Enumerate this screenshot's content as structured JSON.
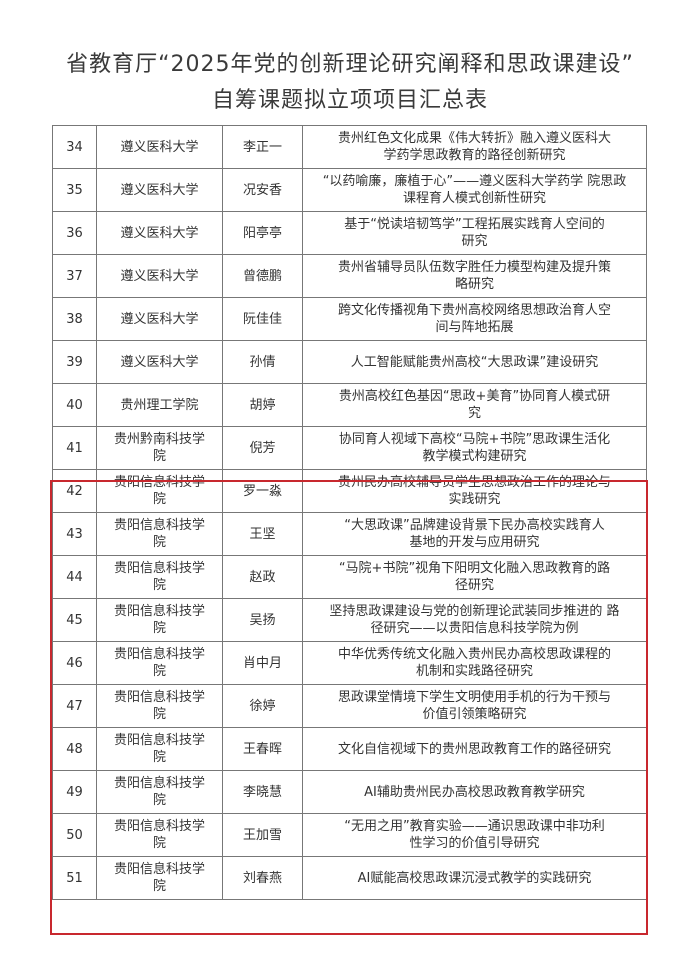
{
  "title": {
    "line1": "省教育厅“2025年党的创新理论研究阐释和思政课建设”",
    "line2": "自筹课题拟立项项目汇总表"
  },
  "highlight_color": "#c8282e",
  "rows": [
    {
      "no": "34",
      "unit": "遵义医科大学",
      "name": "李正一",
      "topic": "贵州红色文化成果《伟大转折》融入遵义医科大\n学药学思政教育的路径创新研究"
    },
    {
      "no": "35",
      "unit": "遵义医科大学",
      "name": "况安香",
      "topic": "“以药喻廉，廉植于心”——遵义医科大学药学 院思政\n课程育人模式创新性研究"
    },
    {
      "no": "36",
      "unit": "遵义医科大学",
      "name": "阳亭亭",
      "topic": "基于“悦读培韧笃学”工程拓展实践育人空间的\n研究"
    },
    {
      "no": "37",
      "unit": "遵义医科大学",
      "name": "曾德鹏",
      "topic": "贵州省辅导员队伍数字胜任力模型构建及提升策\n略研究"
    },
    {
      "no": "38",
      "unit": "遵义医科大学",
      "name": "阮佳佳",
      "topic": "跨文化传播视角下贵州高校网络思想政治育人空\n间与阵地拓展"
    },
    {
      "no": "39",
      "unit": "遵义医科大学",
      "name": "孙倩",
      "topic": "人工智能赋能贵州高校“大思政课”建设研究"
    },
    {
      "no": "40",
      "unit": "贵州理工学院",
      "name": "胡婷",
      "topic": "贵州高校红色基因“思政+美育”协同育人模式研\n究"
    },
    {
      "no": "41",
      "unit": "贵州黔南科技学\n院",
      "name": "倪芳",
      "topic": "协同育人视域下高校“马院+书院”思政课生活化\n教学模式构建研究"
    },
    {
      "no": "42",
      "unit": "贵阳信息科技学\n院",
      "name": "罗一淼",
      "topic": "贵州民办高校辅导员学生思想政治工作的理论与\n实践研究"
    },
    {
      "no": "43",
      "unit": "贵阳信息科技学\n院",
      "name": "王坚",
      "topic": "“大思政课”品牌建设背景下民办高校实践育人\n基地的开发与应用研究"
    },
    {
      "no": "44",
      "unit": "贵阳信息科技学\n院",
      "name": "赵政",
      "topic": "“马院+书院”视角下阳明文化融入思政教育的路\n径研究"
    },
    {
      "no": "45",
      "unit": "贵阳信息科技学\n院",
      "name": "吴扬",
      "topic": "坚持思政课建设与党的创新理论武装同步推进的 路\n径研究——以贵阳信息科技学院为例"
    },
    {
      "no": "46",
      "unit": "贵阳信息科技学\n院",
      "name": "肖中月",
      "topic": "中华优秀传统文化融入贵州民办高校思政课程的\n机制和实践路径研究"
    },
    {
      "no": "47",
      "unit": "贵阳信息科技学\n院",
      "name": "徐婷",
      "topic": "思政课堂情境下学生文明使用手机的行为干预与\n价值引领策略研究"
    },
    {
      "no": "48",
      "unit": "贵阳信息科技学\n院",
      "name": "王春晖",
      "topic": "文化自信视域下的贵州思政教育工作的路径研究"
    },
    {
      "no": "49",
      "unit": "贵阳信息科技学\n院",
      "name": "李晓慧",
      "topic": "AI辅助贵州民办高校思政教育教学研究"
    },
    {
      "no": "50",
      "unit": "贵阳信息科技学\n院",
      "name": "王加雪",
      "topic": "“无用之用”教育实验——通识思政课中非功利\n性学习的价值引导研究"
    },
    {
      "no": "51",
      "unit": "贵阳信息科技学\n院",
      "name": "刘春燕",
      "topic": "AI赋能高校思政课沉浸式教学的实践研究"
    }
  ]
}
